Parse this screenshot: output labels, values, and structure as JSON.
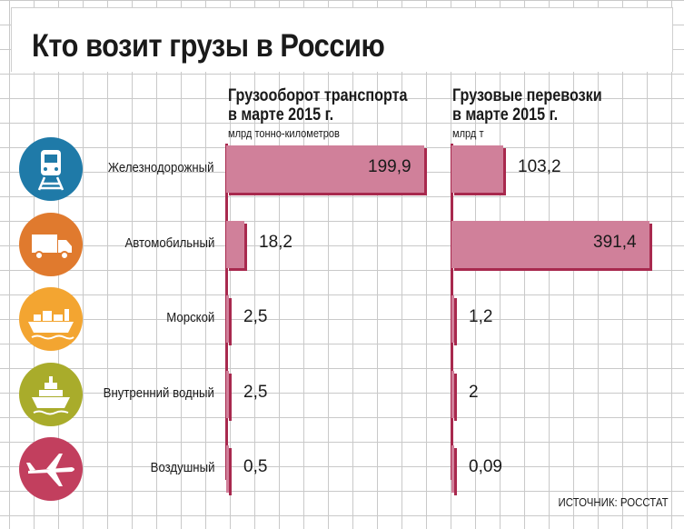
{
  "title": "Кто возит грузы в Россию",
  "source": "ИСТОЧНИК: РОССТАТ",
  "colors": {
    "bar": "#d0809a",
    "bar_shadow": "#a8294e"
  },
  "chart_data": [
    {
      "type": "bar",
      "orientation": "horizontal",
      "title": "Грузооборот транспорта\nв марте 2015 г.",
      "unit": "млрд тонно-километров",
      "categories": [
        "Железнодорожный",
        "Автомобильный",
        "Морской",
        "Внутренний водный",
        "Воздушный"
      ],
      "values": [
        199.9,
        18.2,
        2.5,
        2.5,
        0.5
      ],
      "value_labels": [
        "199,9",
        "18,2",
        "2,5",
        "2,5",
        "0,5"
      ],
      "xlim": [
        0,
        199.9
      ]
    },
    {
      "type": "bar",
      "orientation": "horizontal",
      "title": "Грузовые перевозки\nв марте 2015 г.",
      "unit": "млрд т",
      "categories": [
        "Железнодорожный",
        "Автомобильный",
        "Морской",
        "Внутренний водный",
        "Воздушный"
      ],
      "values": [
        103.2,
        391.4,
        1.2,
        2,
        0.09
      ],
      "value_labels": [
        "103,2",
        "391,4",
        "1,2",
        "2",
        "0,09"
      ],
      "xlim": [
        0,
        391.4
      ]
    }
  ],
  "icons": [
    {
      "name": "train-icon",
      "color": "#1f7aa8"
    },
    {
      "name": "truck-icon",
      "color": "#e07a2e"
    },
    {
      "name": "cargo-ship-icon",
      "color": "#f3a531"
    },
    {
      "name": "river-ship-icon",
      "color": "#a9ac2b"
    },
    {
      "name": "airplane-icon",
      "color": "#c23f5e"
    }
  ]
}
